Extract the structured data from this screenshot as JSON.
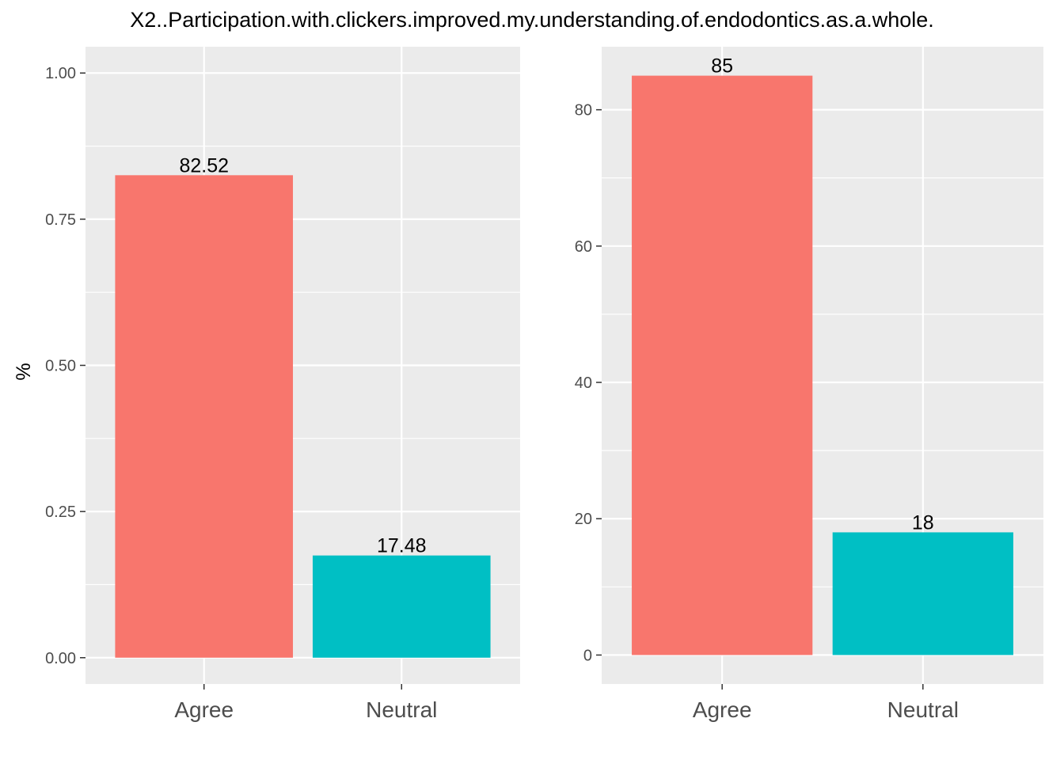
{
  "figure_title": "X2..Participation.with.clickers.improved.my.understanding.of.endodontics.as.a.whole.",
  "colors": {
    "panel_background": "#EBEBEB",
    "grid": "#FFFFFF",
    "tick_text": "#4D4D4D",
    "label_text": "#000000"
  },
  "chart_data": [
    {
      "type": "bar",
      "categories": [
        "Agree",
        "Neutral"
      ],
      "values": [
        0.8252,
        0.1748
      ],
      "data_labels": [
        "82.52",
        "17.48"
      ],
      "bar_colors": [
        "#F8766D",
        "#00BFC4"
      ],
      "ylabel": "%",
      "xlabel": "",
      "ylim": [
        -0.045,
        1.045
      ],
      "yticks": [
        0,
        0.25,
        0.5,
        0.75,
        1.0
      ],
      "ytick_labels": [
        "0.00",
        "0.25",
        "0.50",
        "0.75",
        "1.00"
      ],
      "grid": true,
      "legend": "none"
    },
    {
      "type": "bar",
      "categories": [
        "Agree",
        "Neutral"
      ],
      "values": [
        85,
        18
      ],
      "data_labels": [
        "85",
        "18"
      ],
      "bar_colors": [
        "#F8766D",
        "#00BFC4"
      ],
      "ylabel": "",
      "xlabel": "",
      "ylim": [
        -4.25,
        89.25
      ],
      "yticks": [
        0,
        20,
        40,
        60,
        80
      ],
      "ytick_labels": [
        "0",
        "20",
        "40",
        "60",
        "80"
      ],
      "grid": true,
      "legend": "none"
    }
  ]
}
